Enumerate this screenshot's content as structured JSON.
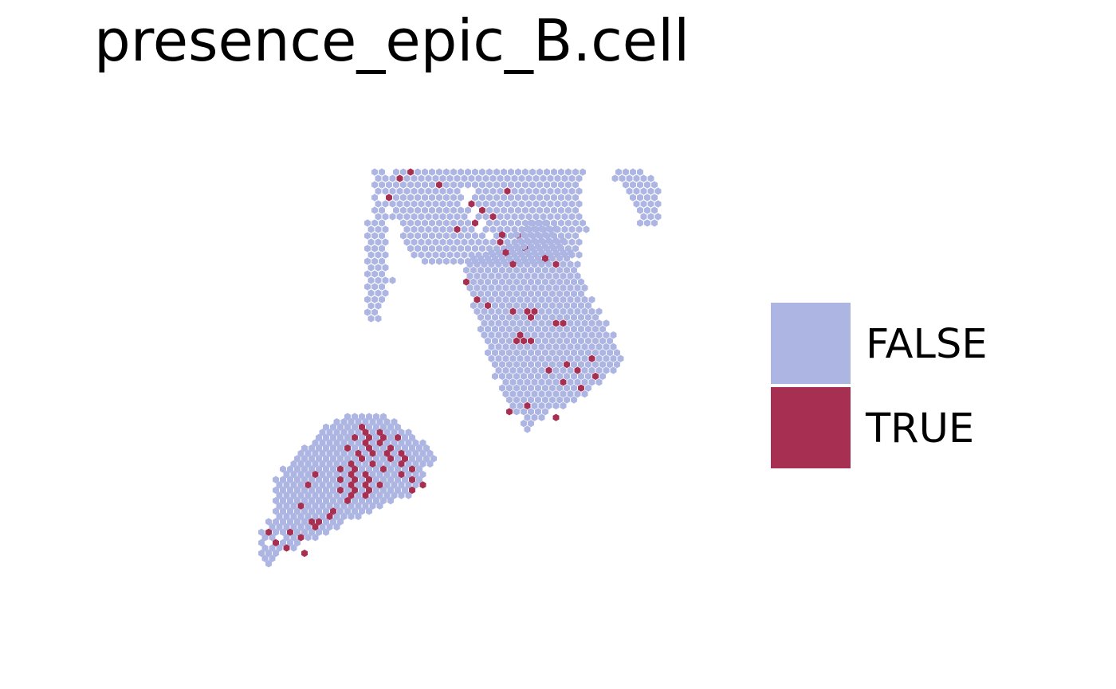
{
  "chart_data": {
    "type": "scatter",
    "title": "presence_epic_B.cell",
    "marker": "hexagon",
    "grid": false,
    "axes_visible": false,
    "legend": {
      "placement": "right",
      "entries": [
        {
          "label": "FALSE",
          "color": "#ADB5E3"
        },
        {
          "label": "TRUE",
          "color": "#A72F51"
        }
      ]
    },
    "colors": {
      "FALSE": "#ADB5E3",
      "TRUE": "#A72F51"
    },
    "regions": [
      {
        "name": "top",
        "rows": [
          [
            0,
            20,
            1
          ],
          [
            0,
            23,
            27
          ],
          [
            1,
            21,
            28
          ],
          [
            2,
            21,
            28
          ],
          [
            3,
            21,
            28
          ],
          [
            4,
            22,
            27
          ],
          [
            5,
            22,
            27
          ],
          [
            6,
            23,
            26
          ],
          [
            7,
            23,
            26
          ],
          [
            8,
            24,
            26
          ],
          [
            9,
            24,
            26
          ],
          [
            10,
            24,
            25
          ],
          [
            11,
            24,
            25
          ],
          [
            12,
            25,
            24
          ],
          [
            13,
            25,
            24
          ],
          [
            14,
            27,
            18
          ],
          [
            0,
            54,
            4
          ],
          [
            1,
            53,
            6
          ],
          [
            2,
            55,
            5
          ],
          [
            3,
            55,
            5
          ],
          [
            4,
            56,
            4
          ],
          [
            5,
            56,
            4
          ],
          [
            6,
            57,
            3
          ],
          [
            7,
            57,
            3
          ],
          [
            8,
            57,
            3
          ],
          [
            0,
            20,
            2
          ],
          [
            1,
            20,
            1
          ],
          [
            2,
            20,
            1
          ],
          [
            3,
            20,
            2
          ]
        ],
        "gaps": [
          [
            3,
            32
          ],
          [
            3,
            33
          ],
          [
            4,
            33
          ],
          [
            5,
            32
          ],
          [
            6,
            34
          ],
          [
            7,
            33
          ],
          [
            8,
            35
          ],
          [
            9,
            34
          ],
          [
            10,
            36
          ]
        ],
        "true_cells": [
          [
            0,
            25
          ],
          [
            1,
            23
          ],
          [
            2,
            29
          ],
          [
            3,
            38
          ],
          [
            4,
            22
          ],
          [
            5,
            33
          ],
          [
            6,
            35
          ],
          [
            7,
            36
          ],
          [
            8,
            34
          ],
          [
            9,
            31
          ],
          [
            10,
            40
          ],
          [
            11,
            37
          ],
          [
            12,
            41
          ]
        ]
      },
      {
        "name": "left-strip",
        "rows": [
          [
            4,
            20,
            1
          ],
          [
            5,
            20,
            2
          ],
          [
            6,
            20,
            2
          ],
          [
            7,
            20,
            3
          ],
          [
            8,
            19,
            3
          ],
          [
            9,
            19,
            3
          ],
          [
            10,
            19,
            3
          ],
          [
            11,
            19,
            3
          ],
          [
            12,
            19,
            3
          ],
          [
            13,
            19,
            3
          ],
          [
            14,
            19,
            3
          ],
          [
            15,
            19,
            3
          ],
          [
            16,
            19,
            3
          ],
          [
            17,
            19,
            3
          ],
          [
            18,
            19,
            3
          ],
          [
            19,
            19,
            3
          ],
          [
            20,
            19,
            3
          ],
          [
            21,
            19,
            2
          ],
          [
            22,
            19,
            2
          ],
          [
            23,
            19,
            2
          ]
        ],
        "extra": [
          [
            17,
            22
          ]
        ]
      },
      {
        "name": "right",
        "rows": [
          [
            0,
            9,
            3
          ],
          [
            1,
            8,
            5
          ],
          [
            2,
            7,
            6
          ],
          [
            3,
            7,
            7
          ],
          [
            4,
            6,
            8
          ],
          [
            5,
            3,
            12
          ],
          [
            6,
            1,
            14
          ],
          [
            7,
            0,
            16
          ],
          [
            8,
            0,
            16
          ],
          [
            9,
            0,
            16
          ],
          [
            10,
            0,
            17
          ],
          [
            11,
            0,
            17
          ],
          [
            12,
            1,
            16
          ],
          [
            13,
            1,
            17
          ],
          [
            14,
            1,
            17
          ],
          [
            15,
            1,
            18
          ],
          [
            16,
            2,
            17
          ],
          [
            17,
            2,
            18
          ],
          [
            18,
            2,
            18
          ],
          [
            19,
            2,
            19
          ],
          [
            20,
            3,
            18
          ],
          [
            21,
            3,
            18
          ],
          [
            22,
            3,
            19
          ],
          [
            23,
            3,
            19
          ],
          [
            24,
            4,
            18
          ],
          [
            25,
            4,
            17
          ],
          [
            26,
            4,
            16
          ],
          [
            27,
            5,
            14
          ],
          [
            28,
            5,
            13
          ],
          [
            29,
            5,
            12
          ],
          [
            30,
            6,
            10
          ],
          [
            31,
            6,
            8
          ],
          [
            32,
            7,
            5
          ],
          [
            33,
            8,
            3
          ],
          [
            34,
            8,
            2
          ],
          [
            35,
            8,
            1
          ]
        ],
        "true_cells": [
          [
            2,
            5
          ],
          [
            5,
            5
          ],
          [
            6,
            11
          ],
          [
            7,
            6
          ],
          [
            7,
            12
          ],
          [
            10,
            0
          ],
          [
            13,
            1
          ],
          [
            14,
            3
          ],
          [
            15,
            6
          ],
          [
            15,
            8
          ],
          [
            15,
            9
          ],
          [
            16,
            9
          ],
          [
            17,
            12
          ],
          [
            17,
            13
          ],
          [
            19,
            7
          ],
          [
            20,
            7
          ],
          [
            20,
            8
          ],
          [
            20,
            9
          ],
          [
            23,
            17
          ],
          [
            24,
            14
          ],
          [
            25,
            15
          ],
          [
            25,
            11
          ],
          [
            26,
            18
          ],
          [
            27,
            13
          ],
          [
            28,
            16
          ],
          [
            31,
            8
          ],
          [
            32,
            6
          ],
          [
            33,
            12
          ]
        ]
      },
      {
        "name": "bottom",
        "rows": [
          [
            0,
            12,
            6
          ],
          [
            1,
            10,
            9
          ],
          [
            2,
            9,
            11
          ],
          [
            3,
            8,
            13
          ],
          [
            4,
            8,
            14
          ],
          [
            5,
            7,
            16
          ],
          [
            6,
            6,
            18
          ],
          [
            7,
            5,
            19
          ],
          [
            8,
            5,
            20
          ],
          [
            9,
            4,
            20
          ],
          [
            10,
            3,
            20
          ],
          [
            11,
            3,
            20
          ],
          [
            12,
            2,
            21
          ],
          [
            13,
            2,
            20
          ],
          [
            14,
            2,
            20
          ],
          [
            15,
            2,
            19
          ],
          [
            16,
            2,
            17
          ],
          [
            17,
            2,
            15
          ],
          [
            18,
            2,
            14
          ],
          [
            19,
            2,
            12
          ],
          [
            20,
            1,
            11
          ],
          [
            21,
            1,
            10
          ],
          [
            22,
            0,
            10
          ],
          [
            23,
            0,
            8
          ],
          [
            24,
            0,
            6
          ],
          [
            25,
            0,
            5
          ],
          [
            26,
            0,
            3
          ],
          [
            27,
            0,
            2
          ],
          [
            28,
            1,
            1
          ]
        ],
        "gaps": [
          [
            22,
            1
          ],
          [
            23,
            2
          ],
          [
            24,
            1
          ]
        ],
        "true_cells": [
          [
            2,
            14
          ],
          [
            3,
            14
          ],
          [
            3,
            16
          ],
          [
            4,
            13
          ],
          [
            4,
            15
          ],
          [
            4,
            17
          ],
          [
            4,
            19
          ],
          [
            5,
            14
          ],
          [
            5,
            16
          ],
          [
            6,
            12
          ],
          [
            6,
            15
          ],
          [
            6,
            18
          ],
          [
            7,
            13
          ],
          [
            7,
            15
          ],
          [
            7,
            17
          ],
          [
            7,
            19
          ],
          [
            8,
            14
          ],
          [
            8,
            18
          ],
          [
            8,
            20
          ],
          [
            9,
            12
          ],
          [
            9,
            15
          ],
          [
            9,
            19
          ],
          [
            10,
            11
          ],
          [
            10,
            13
          ],
          [
            10,
            17
          ],
          [
            10,
            21
          ],
          [
            11,
            7
          ],
          [
            11,
            12
          ],
          [
            11,
            14
          ],
          [
            11,
            19
          ],
          [
            12,
            11
          ],
          [
            12,
            13
          ],
          [
            12,
            15
          ],
          [
            12,
            21
          ],
          [
            13,
            6
          ],
          [
            13,
            12
          ],
          [
            13,
            14
          ],
          [
            13,
            16
          ],
          [
            13,
            22
          ],
          [
            14,
            11
          ],
          [
            14,
            13
          ],
          [
            14,
            15
          ],
          [
            14,
            21
          ],
          [
            15,
            12
          ],
          [
            15,
            14
          ],
          [
            16,
            12
          ],
          [
            17,
            5
          ],
          [
            18,
            10
          ],
          [
            19,
            9
          ],
          [
            20,
            7
          ],
          [
            20,
            8
          ],
          [
            21,
            7
          ],
          [
            22,
            1
          ],
          [
            22,
            4
          ],
          [
            23,
            5
          ],
          [
            24,
            2
          ],
          [
            25,
            3
          ],
          [
            26,
            6
          ]
        ]
      }
    ]
  }
}
